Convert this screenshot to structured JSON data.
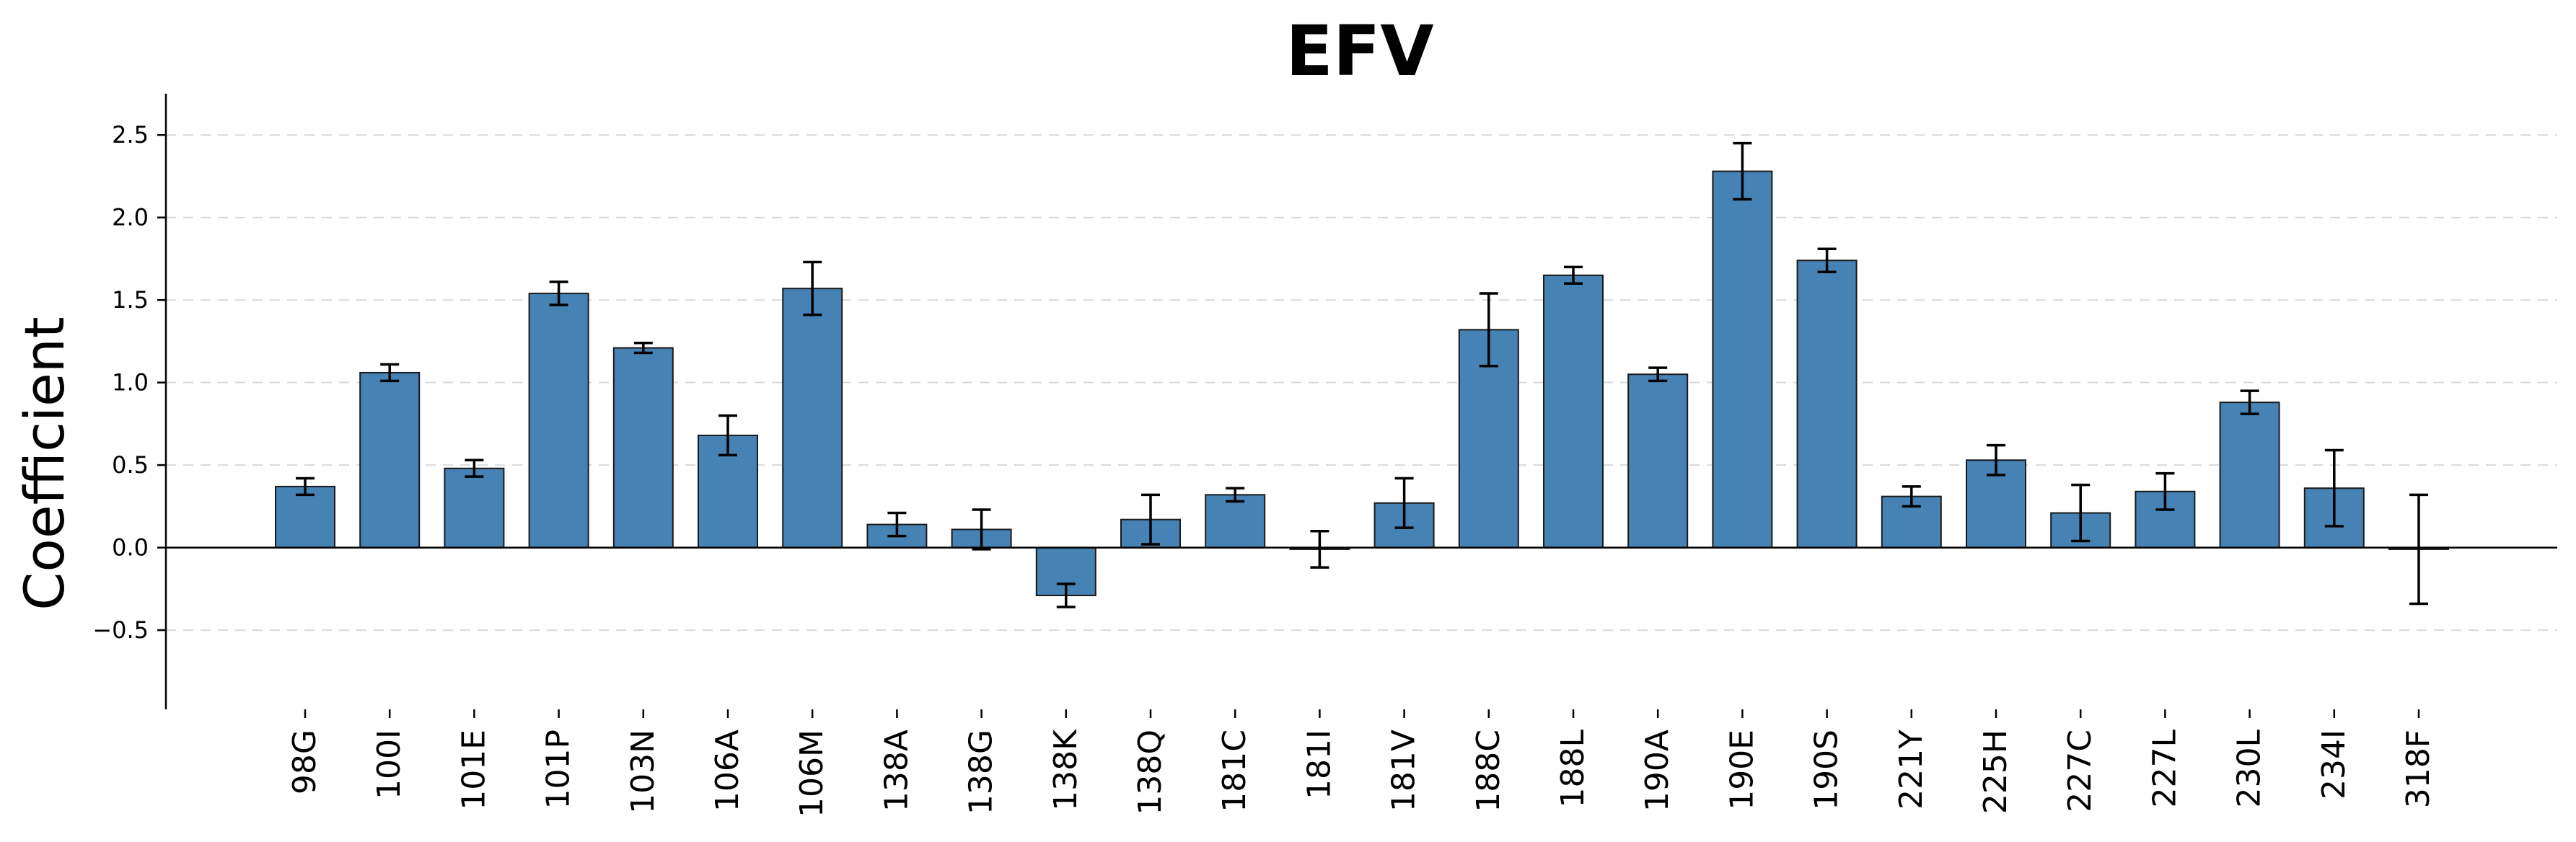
{
  "chart_data": {
    "type": "bar",
    "title": "EFV",
    "xlabel": "",
    "ylabel": "Coefficient",
    "ylim": [
      -0.98,
      2.75
    ],
    "yticks": [
      -0.5,
      0.0,
      0.5,
      1.0,
      1.5,
      2.0,
      2.5
    ],
    "ytick_labels": [
      "−0.5",
      "0.0",
      "0.5",
      "1.0",
      "1.5",
      "2.0",
      "2.5"
    ],
    "grid": "horizontal dashed",
    "bar_color": "#4682b4",
    "categories": [
      "98G",
      "100I",
      "101E",
      "101P",
      "103N",
      "106A",
      "106M",
      "138A",
      "138G",
      "138K",
      "138Q",
      "181C",
      "181I",
      "181V",
      "188C",
      "188L",
      "190A",
      "190E",
      "190S",
      "221Y",
      "225H",
      "227C",
      "227L",
      "230L",
      "234I",
      "318F"
    ],
    "values": [
      0.37,
      1.06,
      0.48,
      1.54,
      1.21,
      0.68,
      1.57,
      0.14,
      0.11,
      -0.29,
      0.17,
      0.32,
      -0.01,
      0.27,
      1.32,
      1.65,
      1.05,
      2.28,
      1.74,
      0.31,
      0.53,
      0.21,
      0.34,
      0.88,
      0.36,
      -0.01
    ],
    "errors": [
      0.05,
      0.05,
      0.05,
      0.07,
      0.03,
      0.12,
      0.16,
      0.07,
      0.12,
      0.07,
      0.15,
      0.04,
      0.11,
      0.15,
      0.22,
      0.05,
      0.04,
      0.17,
      0.07,
      0.06,
      0.09,
      0.17,
      0.11,
      0.07,
      0.23,
      0.33
    ]
  }
}
